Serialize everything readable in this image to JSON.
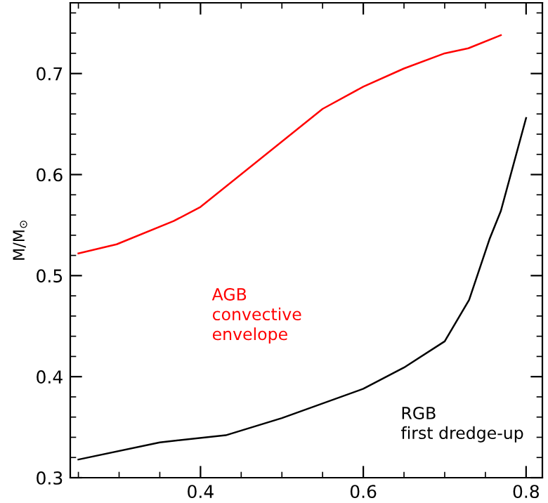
{
  "chart_data": {
    "type": "line",
    "ylabel": "M/M$_{⊙}$",
    "xlim": [
      0.24,
      0.82
    ],
    "ylim": [
      0.3,
      0.77
    ],
    "xticks": [
      {
        "value": 0.25,
        "label": null
      },
      {
        "value": 0.3,
        "label": null
      },
      {
        "value": 0.35,
        "label": null
      },
      0.4,
      {
        "value": 0.45,
        "label": null
      },
      {
        "value": 0.5,
        "label": null
      },
      {
        "value": 0.55,
        "label": null
      },
      0.6,
      {
        "value": 0.65,
        "label": null
      },
      {
        "value": 0.7,
        "label": null
      },
      {
        "value": 0.75,
        "label": null
      },
      0.8
    ],
    "yticks": [
      0.3,
      {
        "value": 0.32,
        "label": null
      },
      {
        "value": 0.34,
        "label": null
      },
      {
        "value": 0.36,
        "label": null
      },
      {
        "value": 0.38,
        "label": null
      },
      0.4,
      {
        "value": 0.42,
        "label": null
      },
      {
        "value": 0.44,
        "label": null
      },
      {
        "value": 0.46,
        "label": null
      },
      {
        "value": 0.48,
        "label": null
      },
      0.5,
      {
        "value": 0.52,
        "label": null
      },
      {
        "value": 0.54,
        "label": null
      },
      {
        "value": 0.56,
        "label": null
      },
      {
        "value": 0.58,
        "label": null
      },
      0.6,
      {
        "value": 0.62,
        "label": null
      },
      {
        "value": 0.64,
        "label": null
      },
      {
        "value": 0.66,
        "label": null
      },
      {
        "value": 0.68,
        "label": null
      },
      0.7,
      {
        "value": 0.72,
        "label": null
      },
      {
        "value": 0.74,
        "label": null
      },
      {
        "value": 0.76,
        "label": null
      }
    ],
    "annotations": [
      "AGB\nconvective\nenvelope",
      "RGB\nfirst dredge-up"
    ],
    "grid": false,
    "legend": false,
    "marker": "none",
    "line_style": "solid",
    "series": [
      {
        "color": "#ff0000",
        "x": [
          0.25,
          0.297,
          0.367,
          0.4,
          0.55,
          0.6,
          0.65,
          0.7,
          0.729,
          0.769
        ],
        "values": [
          0.522,
          0.531,
          0.554,
          0.568,
          0.665,
          0.687,
          0.705,
          0.72,
          0.725,
          0.738
        ]
      },
      {
        "color": "#000000",
        "x": [
          0.25,
          0.35,
          0.431,
          0.5,
          0.6,
          0.65,
          0.7,
          0.73,
          0.755,
          0.769,
          0.8
        ],
        "values": [
          0.318,
          0.335,
          0.342,
          0.359,
          0.388,
          0.409,
          0.435,
          0.476,
          0.536,
          0.564,
          0.656
        ]
      }
    ]
  }
}
